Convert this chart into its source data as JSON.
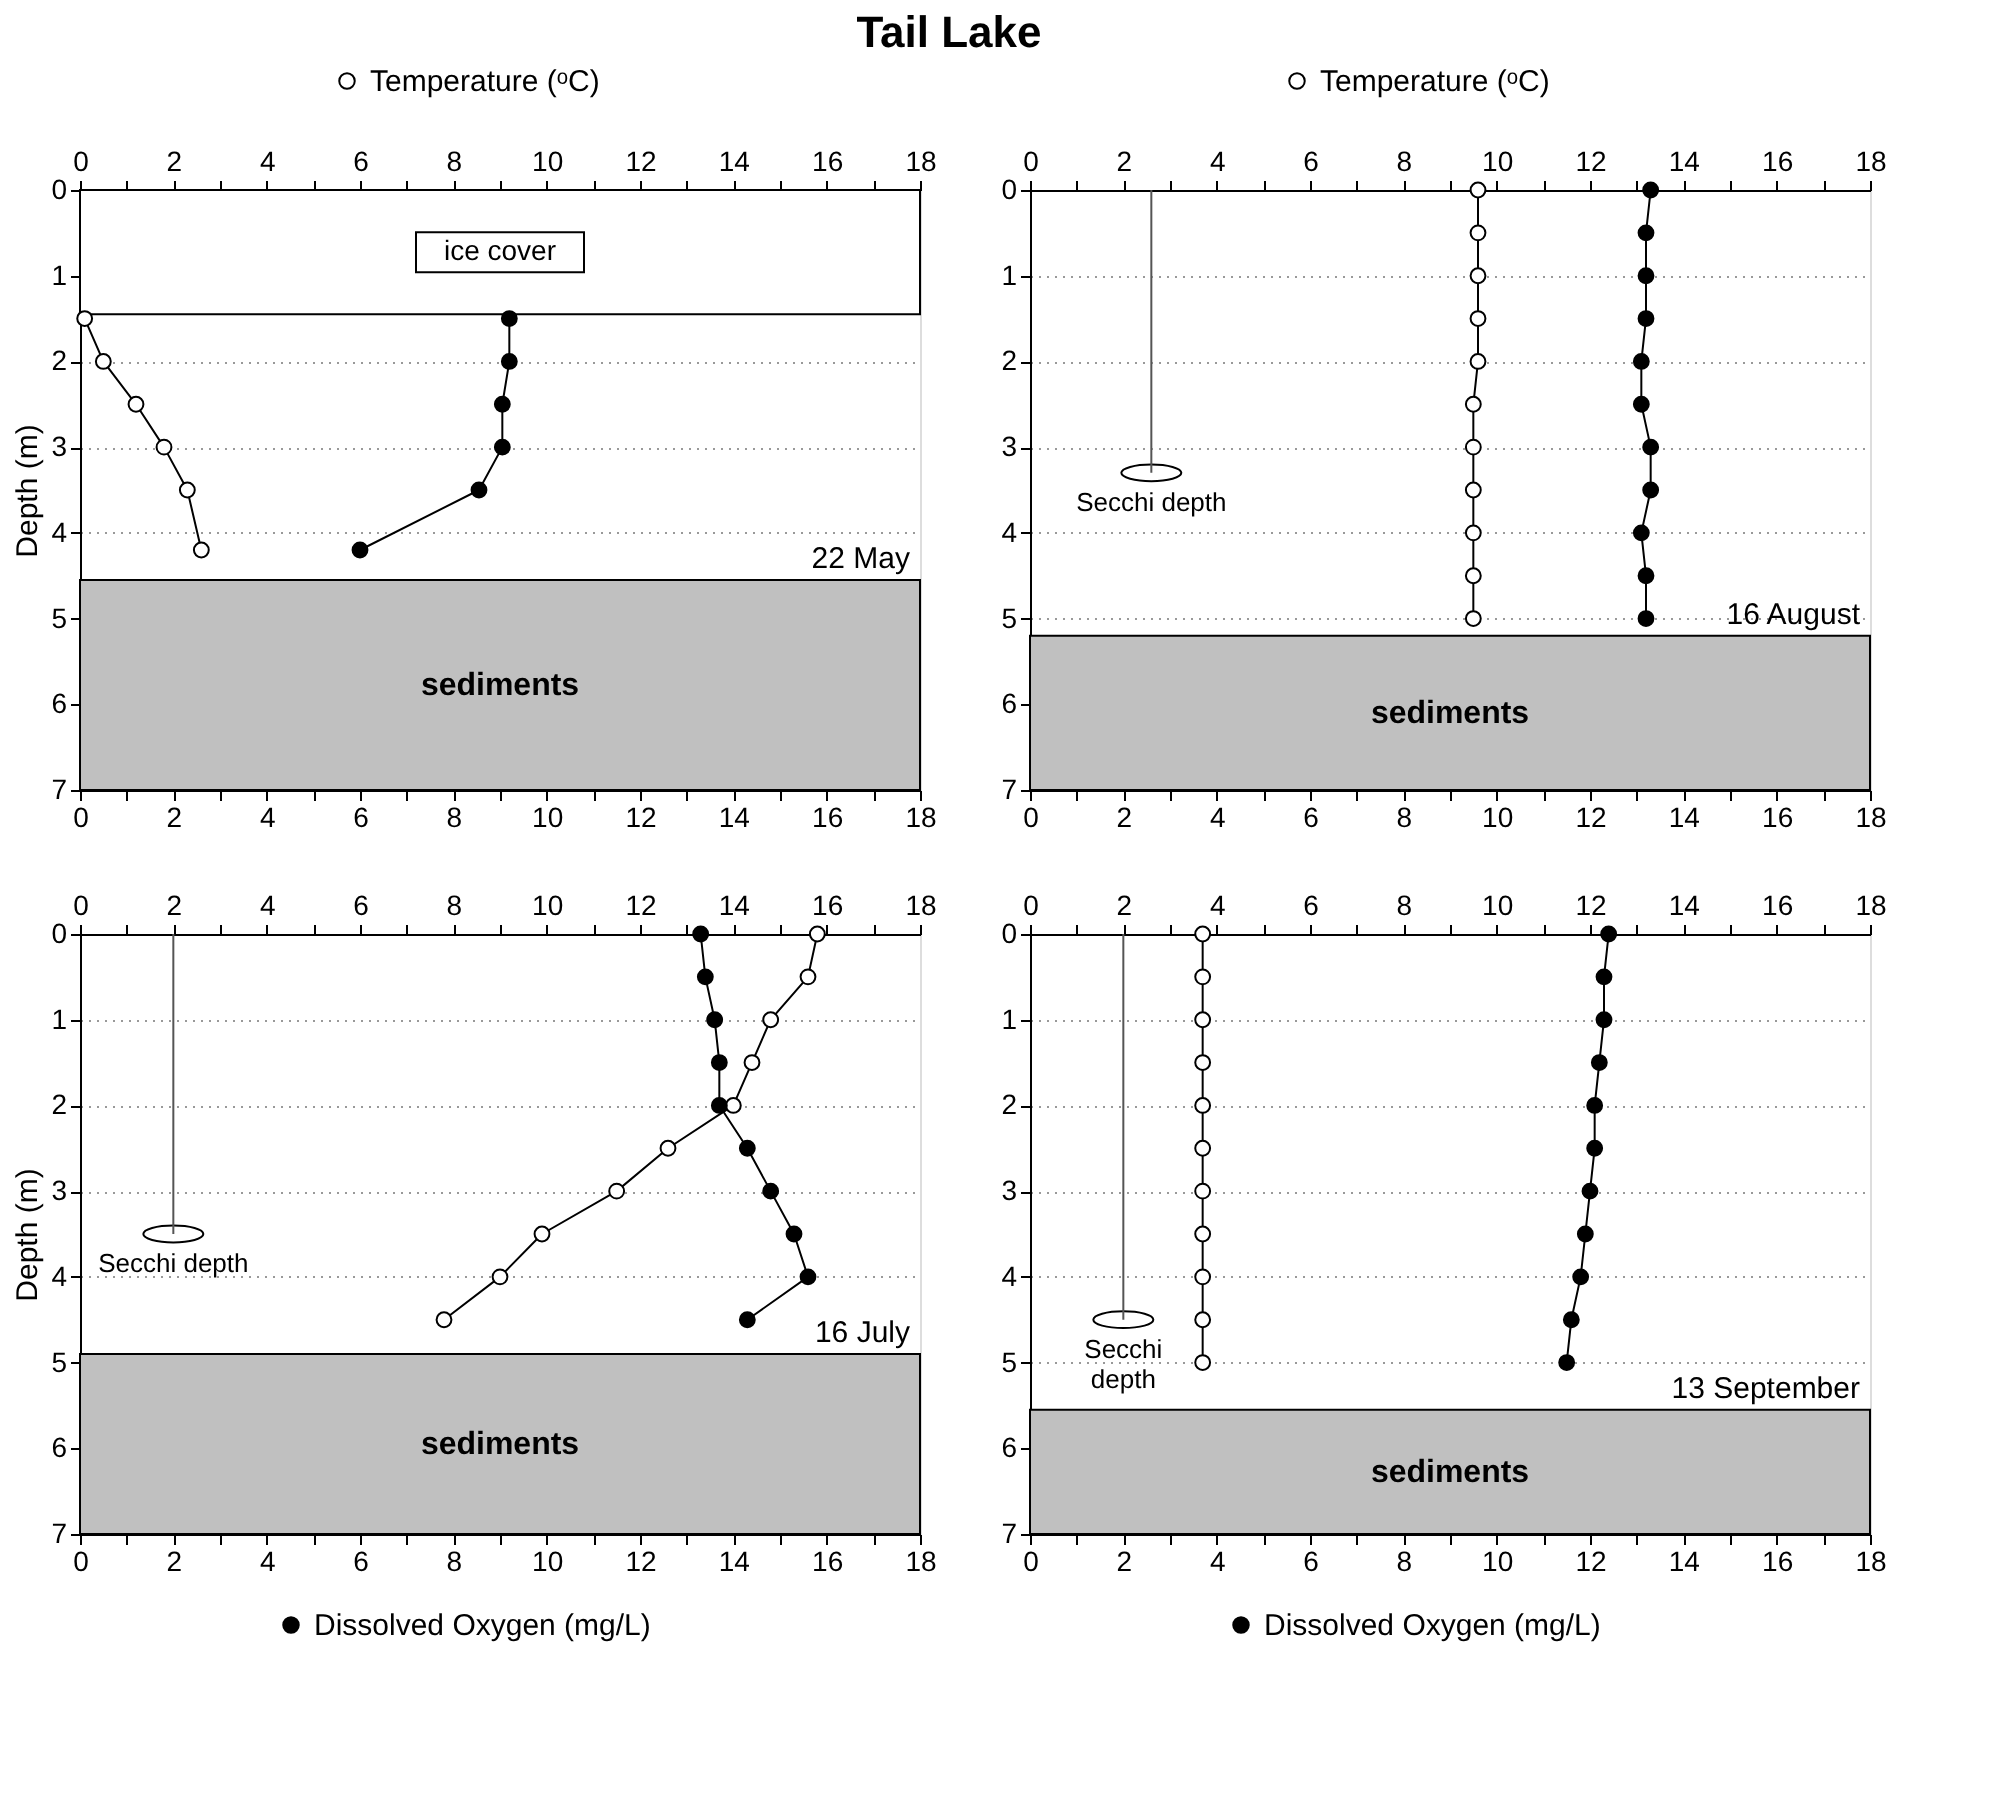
{
  "chart_data": [
    {
      "type": "line",
      "title": "Tail Lake",
      "ylabel": "Depth (m)",
      "xlim": [
        0,
        18
      ],
      "xticks": [
        0,
        {
          "value": 1,
          "label": null
        },
        2,
        {
          "value": 3,
          "label": null
        },
        4,
        {
          "value": 5,
          "label": null
        },
        6,
        {
          "value": 7,
          "label": null
        },
        8,
        {
          "value": 9,
          "label": null
        },
        10,
        {
          "value": 11,
          "label": null
        },
        12,
        {
          "value": 13,
          "label": null
        },
        14,
        {
          "value": 15,
          "label": null
        },
        16,
        {
          "value": 17,
          "label": null
        },
        18
      ],
      "x2lim": [
        0,
        18
      ],
      "x2ticks": [
        0,
        {
          "value": 1,
          "label": null
        },
        2,
        {
          "value": 3,
          "label": null
        },
        4,
        {
          "value": 5,
          "label": null
        },
        6,
        {
          "value": 7,
          "label": null
        },
        8,
        {
          "value": 9,
          "label": null
        },
        10,
        {
          "value": 11,
          "label": null
        },
        12,
        {
          "value": 13,
          "label": null
        },
        14,
        {
          "value": 15,
          "label": null
        },
        16,
        {
          "value": 17,
          "label": null
        },
        18
      ],
      "ylim": [
        7,
        0
      ],
      "yticks": [
        0,
        1,
        2,
        3,
        4,
        5,
        6,
        7
      ],
      "grid": "y",
      "legend": "top",
      "marker": "circle",
      "series": [
        {
          "name": "Temperature (ᵒC)",
          "color": "#ffffff",
          "x": [
            0.1,
            0.5,
            1.2,
            1.8,
            2.3,
            2.6
          ],
          "values": [
            1.5,
            2,
            2.5,
            3,
            3.5,
            4.2
          ]
        },
        {
          "color": "#000000",
          "x": [
            9.2,
            9.2,
            9.05,
            9.05,
            8.55,
            6.0
          ],
          "values": [
            1.5,
            2,
            2.5,
            3,
            3.5,
            4.2
          ]
        }
      ],
      "bands": [
        {
          "axis": "y",
          "from": 0,
          "to": 1.45,
          "label": "ice cover"
        },
        {
          "axis": "y",
          "from": 4.55,
          "to": 7,
          "label": "sediments",
          "color": "#c0c0c0"
        }
      ],
      "annotations": [
        "22 May"
      ]
    },
    {
      "type": "line",
      "xlim": [
        0,
        18
      ],
      "xticks": [
        0,
        {
          "value": 1,
          "label": null
        },
        2,
        {
          "value": 3,
          "label": null
        },
        4,
        {
          "value": 5,
          "label": null
        },
        6,
        {
          "value": 7,
          "label": null
        },
        8,
        {
          "value": 9,
          "label": null
        },
        10,
        {
          "value": 11,
          "label": null
        },
        12,
        {
          "value": 13,
          "label": null
        },
        14,
        {
          "value": 15,
          "label": null
        },
        16,
        {
          "value": 17,
          "label": null
        },
        18
      ],
      "x2lim": [
        0,
        18
      ],
      "x2ticks": [
        0,
        {
          "value": 1,
          "label": null
        },
        2,
        {
          "value": 3,
          "label": null
        },
        4,
        {
          "value": 5,
          "label": null
        },
        6,
        {
          "value": 7,
          "label": null
        },
        8,
        {
          "value": 9,
          "label": null
        },
        10,
        {
          "value": 11,
          "label": null
        },
        12,
        {
          "value": 13,
          "label": null
        },
        14,
        {
          "value": 15,
          "label": null
        },
        16,
        {
          "value": 17,
          "label": null
        },
        18
      ],
      "ylim": [
        7,
        0
      ],
      "yticks": [
        0,
        1,
        2,
        3,
        4,
        5,
        6,
        7
      ],
      "grid": "y",
      "legend": "top",
      "marker": "circle",
      "series": [
        {
          "name": "Temperature (ᵒC)",
          "color": "#ffffff",
          "x": [
            9.6,
            9.6,
            9.6,
            9.6,
            9.6,
            9.5,
            9.5,
            9.5,
            9.5,
            9.5,
            9.5
          ],
          "values": [
            0,
            0.5,
            1,
            1.5,
            2,
            2.5,
            3,
            3.5,
            4,
            4.5,
            5
          ]
        },
        {
          "color": "#000000",
          "x": [
            13.3,
            13.2,
            13.2,
            13.2,
            13.1,
            13.1,
            13.3,
            13.3,
            13.1,
            13.2,
            13.2
          ],
          "values": [
            0,
            0.5,
            1,
            1.5,
            2,
            2.5,
            3,
            3.5,
            4,
            4.5,
            5
          ]
        },
        {
          "name": "Secchi depth",
          "color": "#555555",
          "marker": "none",
          "x": [
            2.6,
            2.6
          ],
          "values": [
            0,
            3.3
          ]
        }
      ],
      "bands": [
        {
          "axis": "y",
          "from": 5.2,
          "to": 7,
          "label": "sediments",
          "color": "#c0c0c0"
        }
      ],
      "annotations": [
        "16 August"
      ]
    },
    {
      "type": "line",
      "ylabel": "Depth (m)",
      "xlim": [
        0,
        18
      ],
      "xticks": [
        0,
        {
          "value": 1,
          "label": null
        },
        2,
        {
          "value": 3,
          "label": null
        },
        4,
        {
          "value": 5,
          "label": null
        },
        6,
        {
          "value": 7,
          "label": null
        },
        8,
        {
          "value": 9,
          "label": null
        },
        10,
        {
          "value": 11,
          "label": null
        },
        12,
        {
          "value": 13,
          "label": null
        },
        14,
        {
          "value": 15,
          "label": null
        },
        16,
        {
          "value": 17,
          "label": null
        },
        18
      ],
      "x2lim": [
        0,
        18
      ],
      "x2ticks": [
        0,
        {
          "value": 1,
          "label": null
        },
        2,
        {
          "value": 3,
          "label": null
        },
        4,
        {
          "value": 5,
          "label": null
        },
        6,
        {
          "value": 7,
          "label": null
        },
        8,
        {
          "value": 9,
          "label": null
        },
        10,
        {
          "value": 11,
          "label": null
        },
        12,
        {
          "value": 13,
          "label": null
        },
        14,
        {
          "value": 15,
          "label": null
        },
        16,
        {
          "value": 17,
          "label": null
        },
        18
      ],
      "ylim": [
        7,
        0
      ],
      "yticks": [
        0,
        1,
        2,
        3,
        4,
        5,
        6,
        7
      ],
      "grid": "y",
      "legend": "bottom",
      "marker": "circle",
      "series": [
        {
          "color": "#ffffff",
          "x": [
            15.8,
            15.6,
            14.8,
            14.4,
            14.0,
            12.6,
            11.5,
            9.9,
            9.0,
            7.8
          ],
          "values": [
            0,
            0.5,
            1,
            1.5,
            2,
            2.5,
            3,
            3.5,
            4,
            4.5
          ]
        },
        {
          "name": "Dissolved Oxygen (mg/L)",
          "color": "#000000",
          "x": [
            13.3,
            13.4,
            13.6,
            13.7,
            13.7,
            14.3,
            14.8,
            15.3,
            15.6,
            14.3
          ],
          "values": [
            0,
            0.5,
            1,
            1.5,
            2,
            2.5,
            3,
            3.5,
            4,
            4.5
          ]
        },
        {
          "name": "Secchi depth",
          "color": "#555555",
          "marker": "none",
          "x": [
            2.0,
            2.0
          ],
          "values": [
            0,
            3.5
          ]
        }
      ],
      "bands": [
        {
          "axis": "y",
          "from": 4.9,
          "to": 7,
          "label": "sediments",
          "color": "#c0c0c0"
        }
      ],
      "annotations": [
        "16 July"
      ]
    },
    {
      "type": "line",
      "xlim": [
        0,
        18
      ],
      "xticks": [
        0,
        {
          "value": 1,
          "label": null
        },
        2,
        {
          "value": 3,
          "label": null
        },
        4,
        {
          "value": 5,
          "label": null
        },
        6,
        {
          "value": 7,
          "label": null
        },
        8,
        {
          "value": 9,
          "label": null
        },
        10,
        {
          "value": 11,
          "label": null
        },
        12,
        {
          "value": 13,
          "label": null
        },
        14,
        {
          "value": 15,
          "label": null
        },
        16,
        {
          "value": 17,
          "label": null
        },
        18
      ],
      "x2lim": [
        0,
        18
      ],
      "x2ticks": [
        0,
        {
          "value": 1,
          "label": null
        },
        2,
        {
          "value": 3,
          "label": null
        },
        4,
        {
          "value": 5,
          "label": null
        },
        6,
        {
          "value": 7,
          "label": null
        },
        8,
        {
          "value": 9,
          "label": null
        },
        10,
        {
          "value": 11,
          "label": null
        },
        12,
        {
          "value": 13,
          "label": null
        },
        14,
        {
          "value": 15,
          "label": null
        },
        16,
        {
          "value": 17,
          "label": null
        },
        18
      ],
      "ylim": [
        7,
        0
      ],
      "yticks": [
        0,
        1,
        2,
        3,
        4,
        5,
        6,
        7
      ],
      "grid": "y",
      "legend": "bottom",
      "marker": "circle",
      "series": [
        {
          "color": "#ffffff",
          "x": [
            3.7,
            3.7,
            3.7,
            3.7,
            3.7,
            3.7,
            3.7,
            3.7,
            3.7,
            3.7,
            3.7
          ],
          "values": [
            0,
            0.5,
            1,
            1.5,
            2,
            2.5,
            3,
            3.5,
            4,
            4.5,
            5
          ]
        },
        {
          "name": "Dissolved Oxygen (mg/L)",
          "color": "#000000",
          "x": [
            12.4,
            12.3,
            12.3,
            12.2,
            12.1,
            12.1,
            12.0,
            11.9,
            11.8,
            11.6,
            11.5
          ],
          "values": [
            0,
            0.5,
            1,
            1.5,
            2,
            2.5,
            3,
            3.5,
            4,
            4.5,
            5
          ]
        },
        {
          "name": "Secchi\ndepth",
          "color": "#555555",
          "marker": "none",
          "x": [
            2.0,
            2.0
          ],
          "values": [
            0,
            4.5
          ]
        }
      ],
      "bands": [
        {
          "axis": "y",
          "from": 5.55,
          "to": 7,
          "label": "sediments",
          "color": "#c0c0c0"
        }
      ],
      "annotations": [
        "13 September"
      ]
    }
  ]
}
